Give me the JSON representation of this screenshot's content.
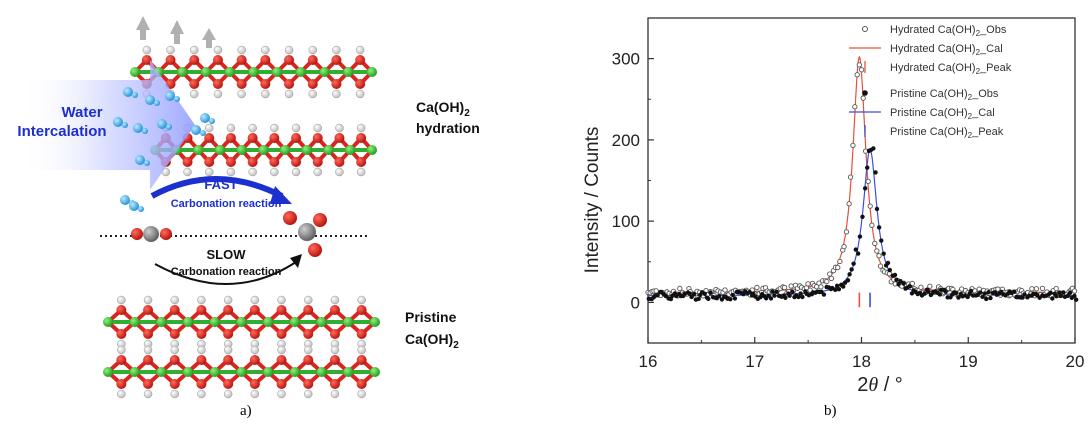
{
  "panel_a": {
    "caption": "a)",
    "labels": {
      "water": "Water",
      "intercalation": "Intercalation",
      "fast": "FAST",
      "fast_reaction": "Carbonation reaction",
      "slow": "SLOW",
      "slow_reaction": "Carbonation reaction",
      "hydration_line1": "Ca(OH)",
      "hydration_sub": "2",
      "hydration_line2": "hydration",
      "pristine_line1": "Pristine",
      "pristine_line2": "Ca(OH)",
      "pristine_sub": "2"
    },
    "colors": {
      "calcium": "#3ec63e",
      "oxygen": "#e0201b",
      "hydrogen": "#ffffff",
      "water_arrow": "#9aa6ff",
      "fast_arrow": "#1c2fcf",
      "slow_arrow": "#111111",
      "carbon": "#808080"
    }
  },
  "panel_b": {
    "caption": "b)"
  },
  "chart_data": {
    "type": "scatter",
    "xlabel_text": "2",
    "xlabel_symbol": "θ",
    "xlabel_unit": " / °",
    "ylabel": "Intensity / Counts",
    "xlim": [
      16,
      20
    ],
    "ylim": [
      -50,
      350
    ],
    "xticks": [
      16,
      17,
      18,
      19,
      20
    ],
    "yticks": [
      0,
      100,
      200,
      300
    ],
    "legend_position": "top-right",
    "legend": [
      {
        "name": "Hydrated Ca(OH)",
        "sub": "2",
        "suffix": "_Obs",
        "style": "open-circle",
        "color": "#555555"
      },
      {
        "name": "Hydrated Ca(OH)",
        "sub": "2",
        "suffix": "_Cal",
        "style": "line",
        "color": "#e8503a"
      },
      {
        "name": "Hydrated Ca(OH)",
        "sub": "2",
        "suffix": "_Peak",
        "style": "tick",
        "color": "#e8503a"
      },
      {
        "name": "Pristine Ca(OH)",
        "sub": "2",
        "suffix": "_Obs",
        "style": "filled-circle",
        "color": "#111111"
      },
      {
        "name": "Pristine Ca(OH)",
        "sub": "2",
        "suffix": "_Cal",
        "style": "line",
        "color": "#3a4fe0"
      },
      {
        "name": "Pristine Ca(OH)",
        "sub": "2",
        "suffix": "_Peak",
        "style": "tick",
        "color": "#3a4fe0"
      }
    ],
    "series": [
      {
        "key": "hydrated",
        "peak_center": 17.98,
        "peak_height": 290,
        "hwhm": 0.075,
        "baseline": 12
      },
      {
        "key": "pristine",
        "peak_center": 18.08,
        "peak_height": 180,
        "hwhm": 0.08,
        "baseline": 8
      }
    ],
    "peak_markers": [
      17.98,
      18.08
    ]
  }
}
